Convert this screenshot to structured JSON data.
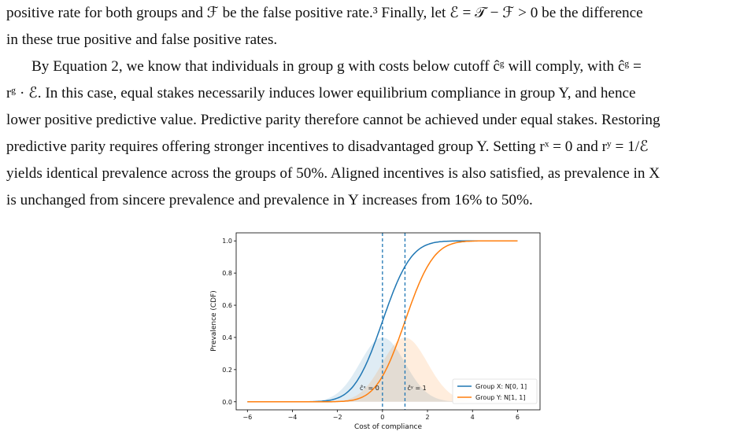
{
  "paragraph1": {
    "line1": "positive rate for both groups and ℱ be the false positive rate.³ Finally, let ℰ = 𝒯 − ℱ > 0 be the difference",
    "line2": "in these true positive and false positive rates."
  },
  "paragraph2": {
    "line1": "By Equation 2, we know that individuals in group g with costs below cutoff ĉᵍ will comply, with ĉᵍ =",
    "line2": "rᵍ · ℰ. In this case, equal stakes necessarily induces lower equilibrium compliance in group Y, and hence",
    "line3": "lower positive predictive value. Predictive parity therefore cannot be achieved under equal stakes. Restoring",
    "line4": "predictive parity requires offering stronger incentives to disadvantaged group Y. Setting rˣ = 0 and rʸ = 1/ℰ",
    "line5": "yields identical prevalence across the groups of 50%. Aligned incentives is also satisfied, as prevalence in X",
    "line6": "is unchanged from sincere prevalence and prevalence in Y increases from 16% to 50%."
  },
  "chart_data": {
    "type": "line",
    "xlabel": "Cost of compliance",
    "ylabel": "Prevalence (CDF)",
    "xlim": [
      -6.5,
      7.0
    ],
    "ylim": [
      -0.05,
      1.05
    ],
    "xticks": [
      -6,
      -4,
      -2,
      0,
      2,
      4,
      6
    ],
    "xtick_labels": [
      "−6",
      "−4",
      "−2",
      "0",
      "2",
      "4",
      "6"
    ],
    "yticks": [
      0.0,
      0.2,
      0.4,
      0.6,
      0.8,
      1.0
    ],
    "ytick_labels": [
      "0.0",
      "0.2",
      "0.4",
      "0.6",
      "0.8",
      "1.0"
    ],
    "grid": false,
    "legend_position": "lower-right",
    "series": [
      {
        "name": "Group X: N[0, 1]",
        "mean": 0,
        "sd": 1,
        "color": "#1f77b4"
      },
      {
        "name": "Group Y: N[1, 1]",
        "mean": 1,
        "sd": 1,
        "color": "#ff7f0e"
      }
    ],
    "x_range": [
      -6,
      6
    ],
    "cutoffs": [
      {
        "label": "ĉˣ = 0",
        "x": 0,
        "color": "#1f77b4"
      },
      {
        "label": "ĉʸ = 1",
        "x": 1,
        "color": "#1f77b4"
      }
    ]
  }
}
